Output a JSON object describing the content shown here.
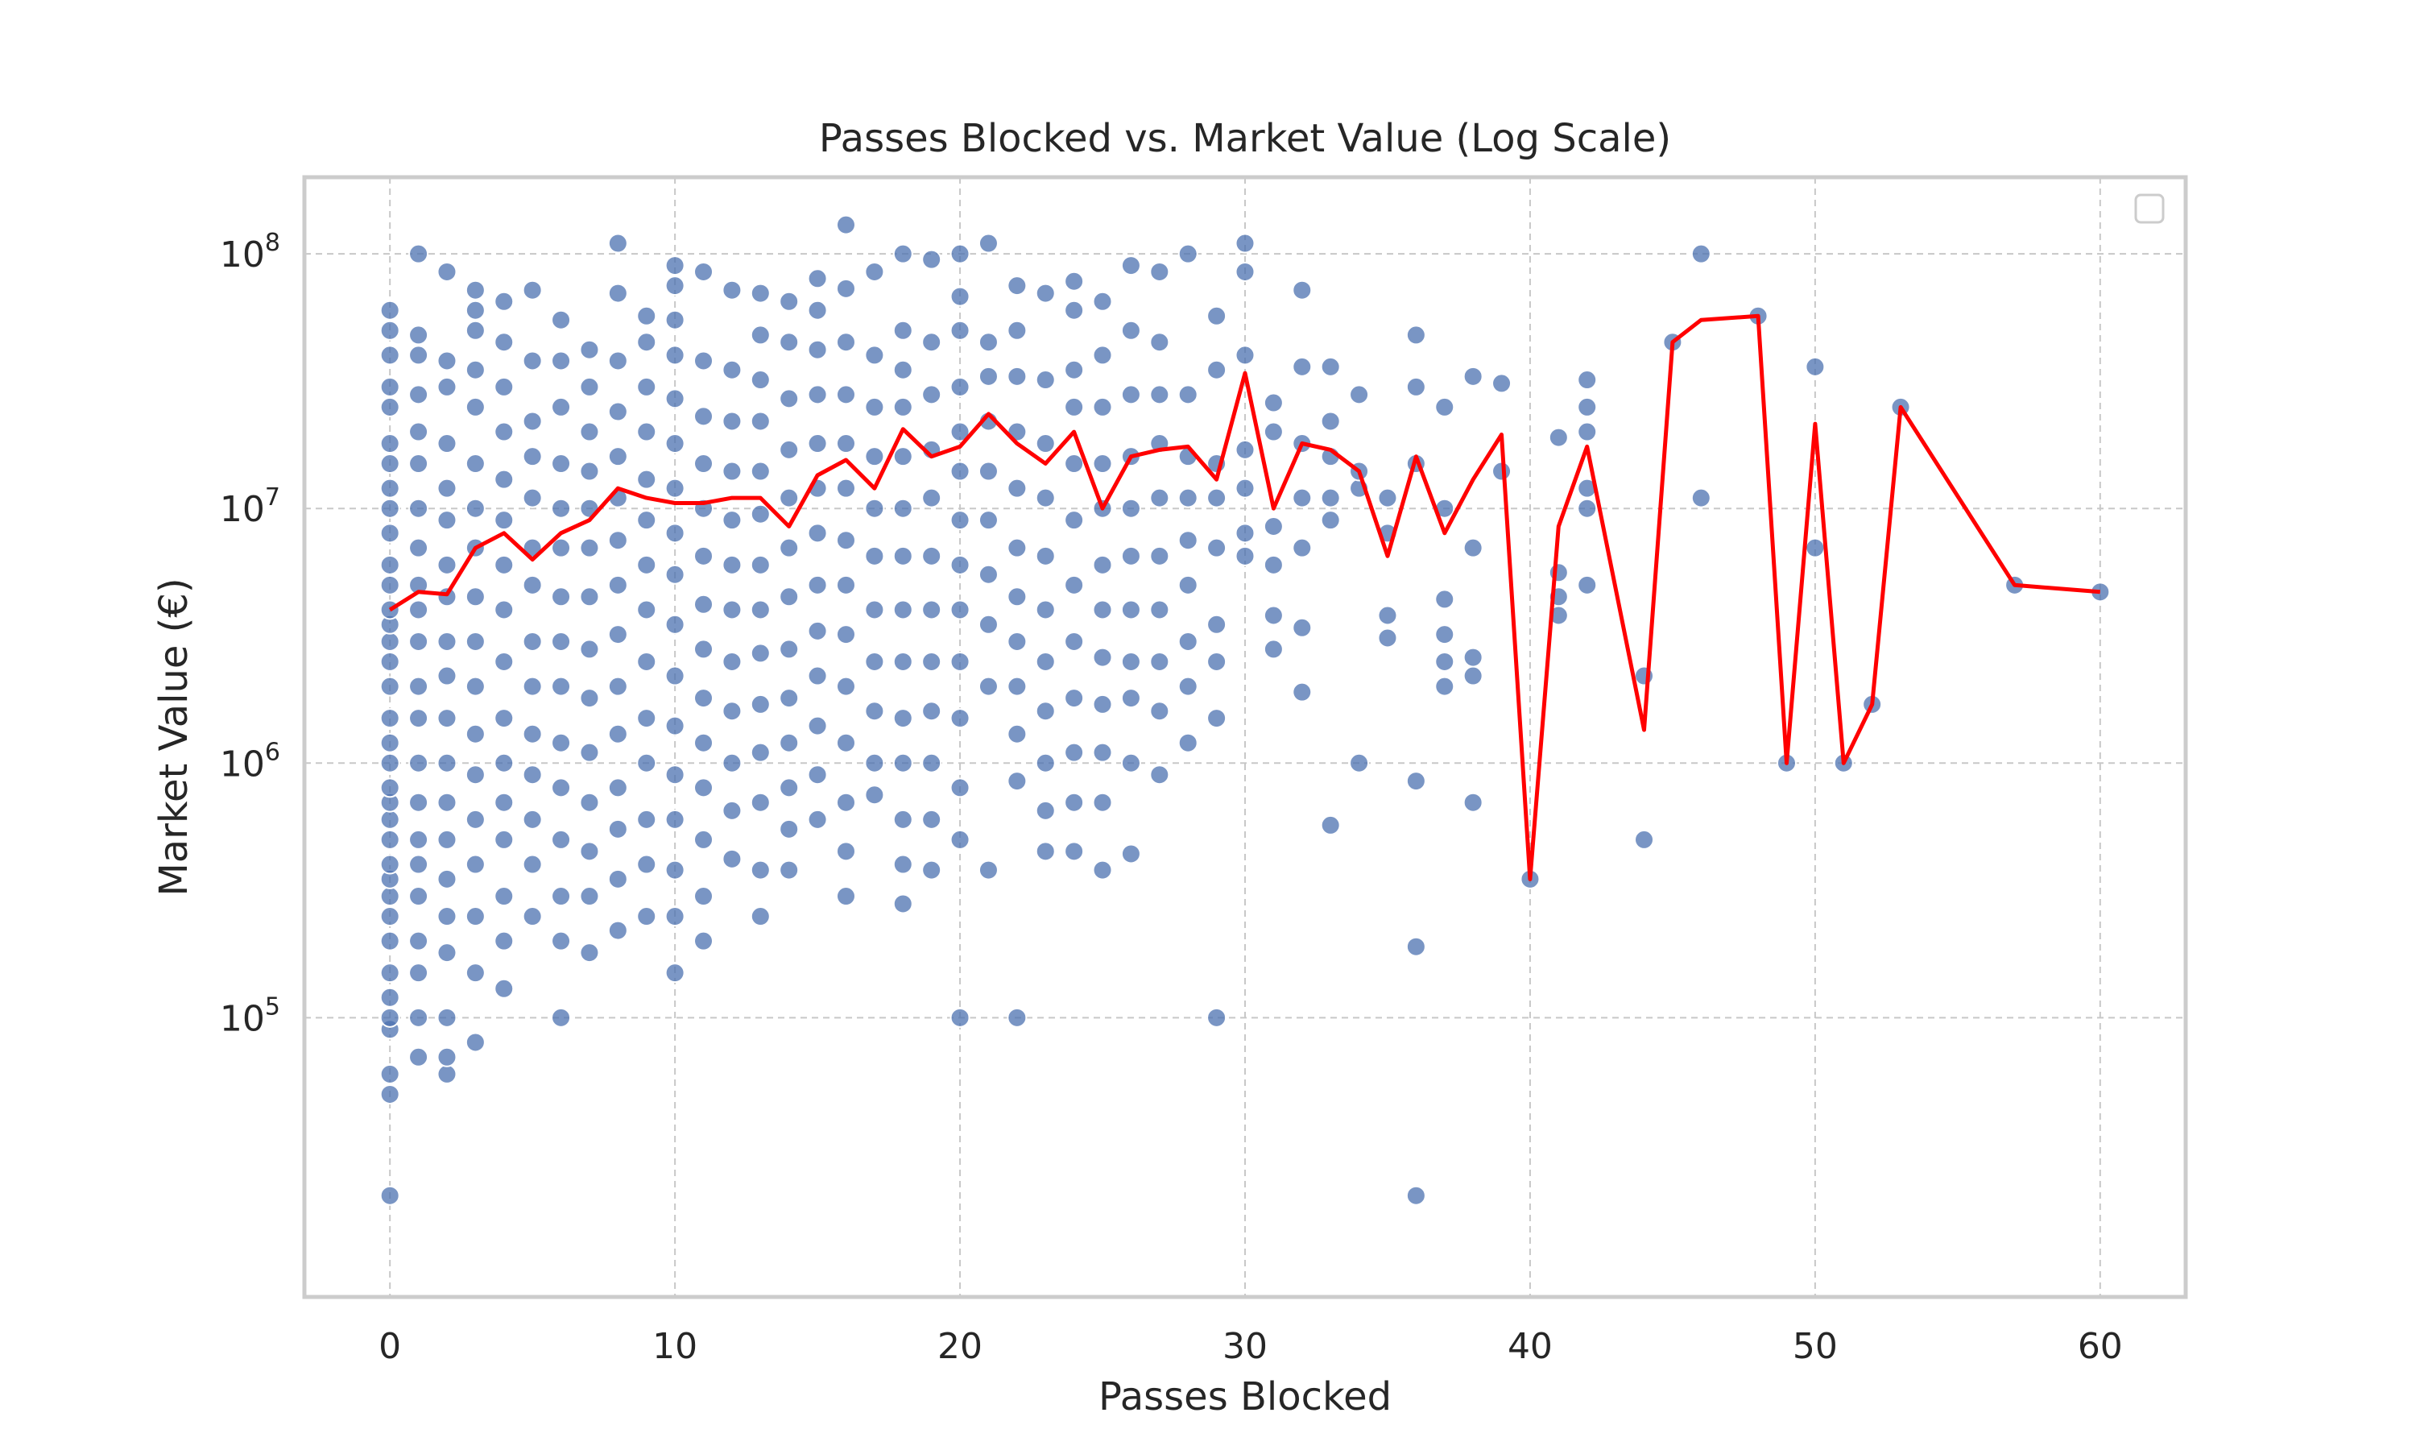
{
  "chart_data": {
    "type": "scatter",
    "title": "Passes Blocked vs. Market Value (Log Scale)",
    "xlabel": "Passes Blocked",
    "ylabel": "Market Value (€)",
    "xlim": [
      -3,
      63
    ],
    "ylim": [
      8000,
      200000000
    ],
    "y_scale": "log",
    "x_ticks": [
      0,
      10,
      20,
      30,
      40,
      50,
      60
    ],
    "y_ticks": [
      {
        "value": 100000,
        "base": "10",
        "exp": "5"
      },
      {
        "value": 1000000,
        "base": "10",
        "exp": "6"
      },
      {
        "value": 10000000,
        "base": "10",
        "exp": "7"
      },
      {
        "value": 100000000,
        "base": "10",
        "exp": "8"
      }
    ],
    "grid": true,
    "legend": "top-right (empty)",
    "colors": {
      "scatter": "#4c72b0",
      "line": "#ff0000",
      "grid": "#c8c8c8",
      "frame": "#cccccc"
    },
    "scatter_columns": [
      {
        "x": 0,
        "y": [
          20000,
          50000,
          60000,
          90000,
          100000,
          120000,
          150000,
          200000,
          250000,
          300000,
          350000,
          400000,
          500000,
          600000,
          700000,
          800000,
          1000000,
          1200000,
          1500000,
          2000000,
          2500000,
          3000000,
          3500000,
          4000000,
          5000000,
          6000000,
          8000000,
          10000000,
          12000000,
          15000000,
          18000000,
          25000000,
          30000000,
          40000000,
          50000000,
          60000000
        ]
      },
      {
        "x": 1,
        "y": [
          70000,
          100000,
          150000,
          200000,
          300000,
          400000,
          500000,
          700000,
          1000000,
          1500000,
          2000000,
          3000000,
          4000000,
          5000000,
          7000000,
          10000000,
          15000000,
          20000000,
          28000000,
          40000000,
          48000000,
          100000000
        ]
      },
      {
        "x": 2,
        "y": [
          60000,
          70000,
          100000,
          180000,
          250000,
          350000,
          500000,
          700000,
          1000000,
          1500000,
          2200000,
          3000000,
          4500000,
          6000000,
          9000000,
          12000000,
          18000000,
          30000000,
          38000000,
          85000000
        ]
      },
      {
        "x": 3,
        "y": [
          80000,
          150000,
          250000,
          400000,
          600000,
          900000,
          1300000,
          2000000,
          3000000,
          4500000,
          7000000,
          10000000,
          15000000,
          25000000,
          35000000,
          50000000,
          60000000,
          72000000
        ]
      },
      {
        "x": 4,
        "y": [
          130000,
          200000,
          300000,
          500000,
          700000,
          1000000,
          1500000,
          2500000,
          4000000,
          6000000,
          9000000,
          13000000,
          20000000,
          30000000,
          45000000,
          65000000
        ]
      },
      {
        "x": 5,
        "y": [
          250000,
          400000,
          600000,
          900000,
          1300000,
          2000000,
          3000000,
          5000000,
          7000000,
          11000000,
          16000000,
          22000000,
          38000000,
          72000000
        ]
      },
      {
        "x": 6,
        "y": [
          100000,
          200000,
          300000,
          500000,
          800000,
          1200000,
          2000000,
          3000000,
          4500000,
          7000000,
          10000000,
          15000000,
          25000000,
          38000000,
          55000000
        ]
      },
      {
        "x": 7,
        "y": [
          180000,
          300000,
          450000,
          700000,
          1100000,
          1800000,
          2800000,
          4500000,
          7000000,
          10000000,
          14000000,
          20000000,
          30000000,
          42000000
        ]
      },
      {
        "x": 8,
        "y": [
          220000,
          350000,
          550000,
          800000,
          1300000,
          2000000,
          3200000,
          5000000,
          7500000,
          11000000,
          16000000,
          24000000,
          38000000,
          70000000,
          110000000
        ]
      },
      {
        "x": 9,
        "y": [
          250000,
          400000,
          600000,
          1000000,
          1500000,
          2500000,
          4000000,
          6000000,
          9000000,
          13000000,
          20000000,
          30000000,
          45000000,
          57000000
        ]
      },
      {
        "x": 10,
        "y": [
          150000,
          250000,
          380000,
          600000,
          900000,
          1400000,
          2200000,
          3500000,
          5500000,
          8000000,
          12000000,
          18000000,
          27000000,
          40000000,
          55000000,
          75000000,
          90000000
        ]
      },
      {
        "x": 11,
        "y": [
          200000,
          300000,
          500000,
          800000,
          1200000,
          1800000,
          2800000,
          4200000,
          6500000,
          10000000,
          15000000,
          23000000,
          38000000,
          85000000
        ]
      },
      {
        "x": 12,
        "y": [
          420000,
          650000,
          1000000,
          1600000,
          2500000,
          4000000,
          6000000,
          9000000,
          14000000,
          22000000,
          35000000,
          72000000
        ]
      },
      {
        "x": 13,
        "y": [
          250000,
          380000,
          700000,
          1100000,
          1700000,
          2700000,
          4000000,
          6000000,
          9500000,
          14000000,
          22000000,
          32000000,
          48000000,
          70000000
        ]
      },
      {
        "x": 14,
        "y": [
          380000,
          550000,
          800000,
          1200000,
          1800000,
          2800000,
          4500000,
          7000000,
          11000000,
          17000000,
          27000000,
          45000000,
          65000000
        ]
      },
      {
        "x": 15,
        "y": [
          600000,
          900000,
          1400000,
          2200000,
          3300000,
          5000000,
          8000000,
          12000000,
          18000000,
          28000000,
          42000000,
          60000000,
          80000000
        ]
      },
      {
        "x": 16,
        "y": [
          300000,
          450000,
          700000,
          1200000,
          2000000,
          3200000,
          5000000,
          7500000,
          12000000,
          18000000,
          28000000,
          45000000,
          73000000,
          130000000
        ]
      },
      {
        "x": 17,
        "y": [
          750000,
          1000000,
          1600000,
          2500000,
          4000000,
          6500000,
          10000000,
          16000000,
          25000000,
          40000000,
          85000000
        ]
      },
      {
        "x": 18,
        "y": [
          280000,
          400000,
          600000,
          1000000,
          1500000,
          2500000,
          4000000,
          6500000,
          10000000,
          16000000,
          25000000,
          35000000,
          50000000,
          100000000
        ]
      },
      {
        "x": 19,
        "y": [
          380000,
          600000,
          1000000,
          1600000,
          2500000,
          4000000,
          6500000,
          11000000,
          17000000,
          28000000,
          45000000,
          95000000
        ]
      },
      {
        "x": 20,
        "y": [
          100000,
          500000,
          800000,
          1500000,
          2500000,
          4000000,
          6000000,
          9000000,
          14000000,
          20000000,
          30000000,
          50000000,
          68000000,
          100000000
        ]
      },
      {
        "x": 21,
        "y": [
          380000,
          2000000,
          3500000,
          5500000,
          9000000,
          14000000,
          22000000,
          33000000,
          45000000,
          110000000
        ]
      },
      {
        "x": 22,
        "y": [
          100000,
          850000,
          1300000,
          2000000,
          3000000,
          4500000,
          7000000,
          12000000,
          20000000,
          33000000,
          50000000,
          75000000
        ]
      },
      {
        "x": 23,
        "y": [
          450000,
          650000,
          1000000,
          1600000,
          2500000,
          4000000,
          6500000,
          11000000,
          18000000,
          32000000,
          70000000
        ]
      },
      {
        "x": 24,
        "y": [
          450000,
          700000,
          1100000,
          1800000,
          3000000,
          5000000,
          9000000,
          15000000,
          25000000,
          35000000,
          60000000,
          78000000
        ]
      },
      {
        "x": 25,
        "y": [
          380000,
          700000,
          1100000,
          1700000,
          2600000,
          4000000,
          6000000,
          10000000,
          15000000,
          25000000,
          40000000,
          65000000
        ]
      },
      {
        "x": 26,
        "y": [
          440000,
          1000000,
          1800000,
          2500000,
          4000000,
          6500000,
          10000000,
          16000000,
          28000000,
          50000000,
          90000000
        ]
      },
      {
        "x": 27,
        "y": [
          900000,
          1600000,
          2500000,
          4000000,
          6500000,
          11000000,
          18000000,
          28000000,
          45000000,
          85000000
        ]
      },
      {
        "x": 28,
        "y": [
          1200000,
          2000000,
          3000000,
          5000000,
          7500000,
          11000000,
          16000000,
          28000000,
          100000000
        ]
      },
      {
        "x": 29,
        "y": [
          100000,
          1500000,
          2500000,
          3500000,
          7000000,
          11000000,
          15000000,
          35000000,
          57000000
        ]
      },
      {
        "x": 30,
        "y": [
          6500000,
          8000000,
          12000000,
          17000000,
          40000000,
          85000000,
          110000000
        ]
      },
      {
        "x": 31,
        "y": [
          2800000,
          3800000,
          6000000,
          8500000,
          20000000,
          26000000
        ]
      },
      {
        "x": 32,
        "y": [
          1900000,
          3400000,
          7000000,
          11000000,
          18000000,
          36000000,
          72000000
        ]
      },
      {
        "x": 33,
        "y": [
          570000,
          9000000,
          11000000,
          16000000,
          22000000,
          36000000
        ]
      },
      {
        "x": 34,
        "y": [
          1000000,
          12000000,
          14000000,
          28000000
        ]
      },
      {
        "x": 35,
        "y": [
          3100000,
          3800000,
          8000000,
          11000000
        ]
      },
      {
        "x": 36,
        "y": [
          20000,
          190000,
          850000,
          15000000,
          30000000,
          48000000
        ]
      },
      {
        "x": 37,
        "y": [
          2000000,
          2500000,
          3200000,
          4400000,
          10000000,
          25000000
        ]
      },
      {
        "x": 38,
        "y": [
          700000,
          2200000,
          2600000,
          7000000,
          33000000
        ]
      },
      {
        "x": 39,
        "y": [
          14000000,
          31000000
        ]
      },
      {
        "x": 40,
        "y": [
          350000
        ]
      },
      {
        "x": 41,
        "y": [
          3800000,
          4500000,
          5600000,
          19000000
        ]
      },
      {
        "x": 42,
        "y": [
          5000000,
          10000000,
          12000000,
          20000000,
          25000000,
          32000000
        ]
      },
      {
        "x": 44,
        "y": [
          500000,
          2200000
        ]
      },
      {
        "x": 45,
        "y": [
          45000000
        ]
      },
      {
        "x": 46,
        "y": [
          11000000,
          100000000
        ]
      },
      {
        "x": 48,
        "y": [
          57000000
        ]
      },
      {
        "x": 49,
        "y": [
          1000000
        ]
      },
      {
        "x": 50,
        "y": [
          7000000,
          36000000
        ]
      },
      {
        "x": 51,
        "y": [
          1000000
        ]
      },
      {
        "x": 52,
        "y": [
          1700000
        ]
      },
      {
        "x": 53,
        "y": [
          25000000
        ]
      },
      {
        "x": 57,
        "y": [
          5000000
        ]
      },
      {
        "x": 60,
        "y": [
          4700000
        ]
      }
    ],
    "series": [
      {
        "x": [
          0,
          1,
          2,
          3,
          4,
          5,
          6,
          7,
          8,
          9,
          10,
          11,
          12,
          13,
          14,
          15,
          16,
          17,
          18,
          19,
          20,
          21,
          22,
          23,
          24,
          25,
          26,
          27,
          28,
          29,
          30,
          31,
          32,
          33,
          34,
          35,
          36,
          37,
          38,
          39,
          40,
          41,
          42,
          44,
          45,
          46,
          48,
          49,
          50,
          51,
          52,
          53,
          57,
          60
        ],
        "values": [
          4000000,
          4700000,
          4600000,
          7000000,
          8000000,
          6300000,
          8000000,
          9000000,
          12000000,
          11000000,
          10500000,
          10500000,
          11000000,
          11000000,
          8500000,
          13500000,
          15500000,
          12000000,
          20500000,
          16000000,
          17500000,
          23500000,
          18000000,
          15000000,
          20000000,
          10000000,
          16000000,
          17000000,
          17500000,
          13000000,
          34000000,
          10000000,
          18000000,
          17000000,
          14000000,
          6500000,
          16000000,
          8000000,
          13000000,
          19500000,
          350000,
          8500000,
          17500000,
          1350000,
          45000000,
          55000000,
          57000000,
          1000000,
          21500000,
          1000000,
          1700000,
          25000000,
          5000000,
          4700000
        ]
      }
    ]
  }
}
